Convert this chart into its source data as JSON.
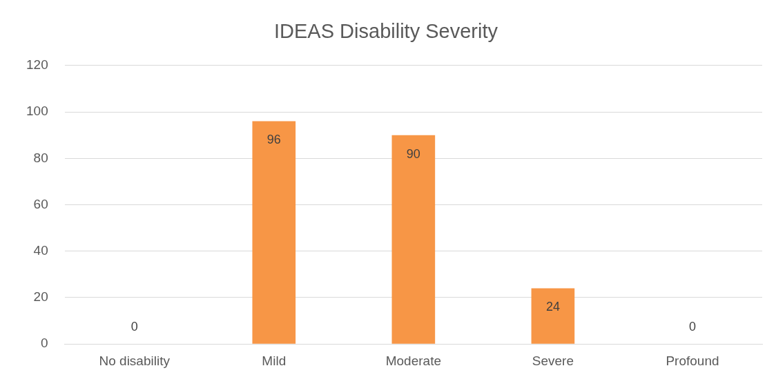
{
  "chart_data": {
    "type": "bar",
    "title": "IDEAS Disability Severity",
    "categories": [
      "No disability",
      "Mild",
      "Moderate",
      "Severe",
      "Profound"
    ],
    "values": [
      0,
      96,
      90,
      24,
      0
    ],
    "color": "#f79646",
    "ylim": [
      0,
      120
    ],
    "yticks": [
      0,
      20,
      40,
      60,
      80,
      100,
      120
    ],
    "grid": "y",
    "data_labels": true
  }
}
